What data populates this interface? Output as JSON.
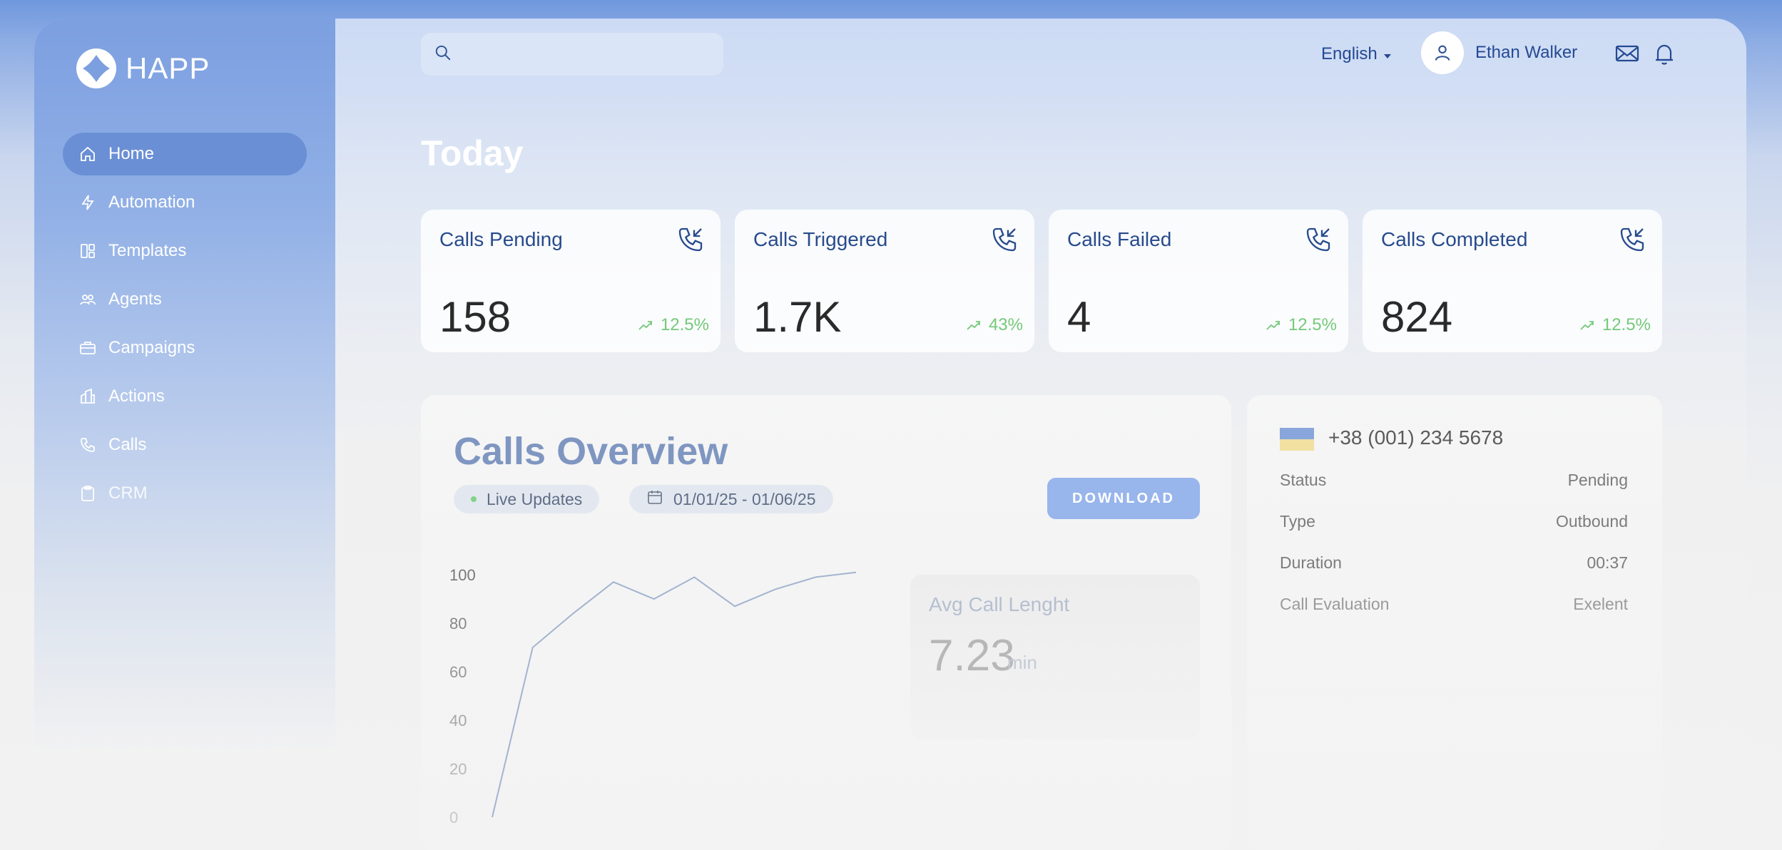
{
  "app": {
    "name": "HAPP"
  },
  "sidebar": {
    "items": [
      {
        "label": "Home",
        "icon": "home-icon"
      },
      {
        "label": "Automation",
        "icon": "bolt-icon"
      },
      {
        "label": "Templates",
        "icon": "templates-icon"
      },
      {
        "label": "Agents",
        "icon": "users-icon"
      },
      {
        "label": "Campaigns",
        "icon": "briefcase-icon"
      },
      {
        "label": "Actions",
        "icon": "building-icon"
      },
      {
        "label": "Calls",
        "icon": "phone-icon"
      },
      {
        "label": "CRM",
        "icon": "clipboard-icon"
      }
    ]
  },
  "topbar": {
    "search_placeholder": "",
    "language": "English",
    "user_name": "Ethan Walker"
  },
  "page": {
    "title": "Today"
  },
  "stats": [
    {
      "title": "Calls Pending",
      "value": "158",
      "trend": "12.5%"
    },
    {
      "title": "Calls Triggered",
      "value": "1.7K",
      "trend": "43%"
    },
    {
      "title": "Calls Failed",
      "value": "4",
      "trend": "12.5%"
    },
    {
      "title": "Calls Completed",
      "value": "824",
      "trend": "12.5%"
    }
  ],
  "overview": {
    "title": "Calls Overview",
    "live_label": "Live Updates",
    "date_range": "01/01/25 - 01/06/25",
    "download_label": "DOWNLOAD",
    "avg_label": "Avg Call Lenght",
    "avg_value": "7.23",
    "avg_unit": "min"
  },
  "chart_data": {
    "type": "line",
    "title": "",
    "xlabel": "",
    "ylabel": "",
    "ylim": [
      0,
      100
    ],
    "yticks": [
      0,
      20,
      40,
      60,
      80,
      100
    ],
    "x": [
      0,
      1,
      2,
      3,
      4,
      5,
      6,
      7,
      8,
      9
    ],
    "values": [
      0,
      70,
      84,
      97,
      90,
      99,
      87,
      94,
      99,
      101
    ],
    "color": "#a3b4cf"
  },
  "call_detail": {
    "phone": "+38 (001) 234 5678",
    "rows": [
      {
        "label": "Status",
        "value": "Pending"
      },
      {
        "label": "Type",
        "value": "Outbound"
      },
      {
        "label": "Duration",
        "value": "00:37"
      },
      {
        "label": "Call Evaluation",
        "value": "Exelent"
      }
    ]
  },
  "colors": {
    "accent": "#6a8fd5",
    "primary_text": "#274b8d",
    "trend_up": "#74c97a",
    "button": "#98b5ec"
  }
}
